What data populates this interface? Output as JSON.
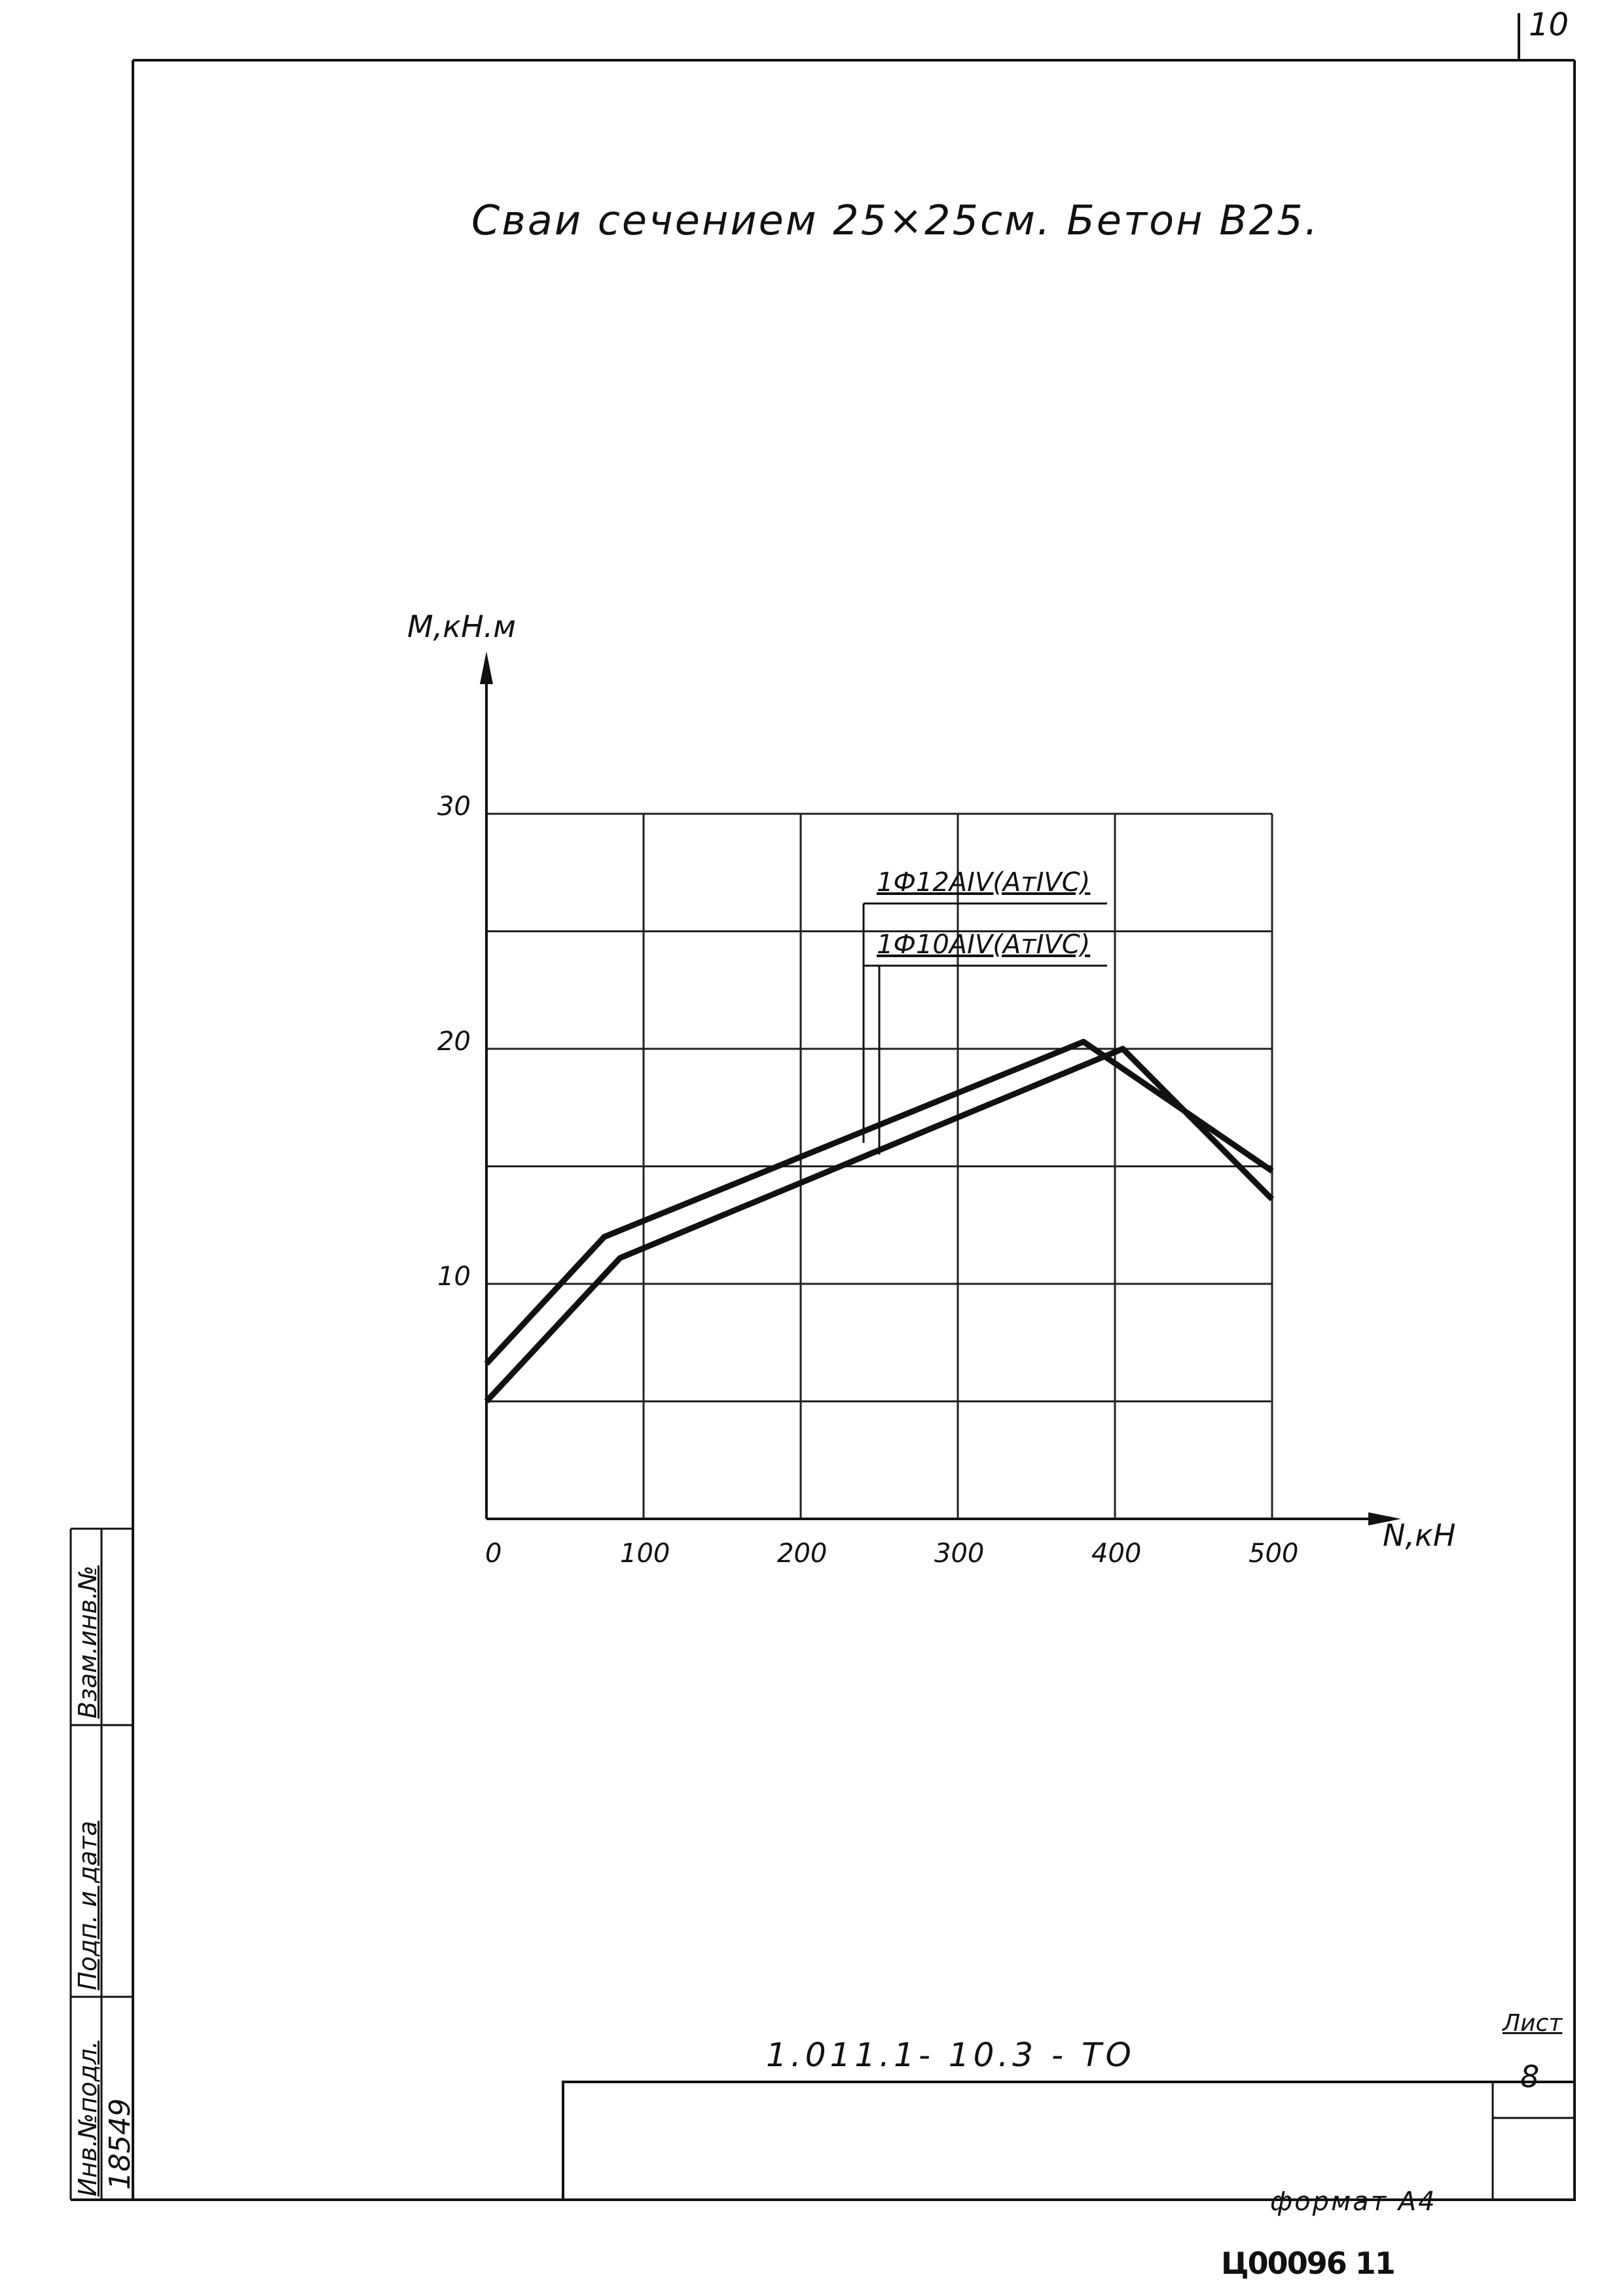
{
  "sheet": {
    "number_top": "10",
    "title": "Сваи сечением 25×25см. Бетон В25.",
    "code": "1.011.1- 10.3 -   ТО",
    "list_label": "Лист",
    "list_number": "8",
    "format_label": "формат А4",
    "stamp": "Ц00096   11"
  },
  "side_stamp": {
    "inv_label": "Инв.№подл.",
    "sign_label": "Подп. и дата",
    "replace_label": "Взам.инв.№",
    "inv_number": "18549"
  },
  "chart_data": {
    "type": "line",
    "xlabel": "N,кН",
    "ylabel": "M,кН.м",
    "xlim": [
      0,
      500
    ],
    "ylim": [
      0,
      30
    ],
    "x_ticks": [
      0,
      100,
      200,
      300,
      400,
      500
    ],
    "x_tick_labels": [
      "0",
      "100",
      "200",
      "300",
      "400",
      "500"
    ],
    "y_ticks": [
      10,
      20,
      30
    ],
    "y_tick_labels": [
      "10",
      "20",
      "30"
    ],
    "grid": true,
    "series": [
      {
        "name": "1Ф12АIV(АтIVС)",
        "points": [
          [
            0,
            6.6
          ],
          [
            75,
            12.0
          ],
          [
            380,
            20.3
          ],
          [
            500,
            14.8
          ]
        ]
      },
      {
        "name": "1Ф10АIV(АтIVC)",
        "points": [
          [
            0,
            5.0
          ],
          [
            85,
            11.1
          ],
          [
            405,
            20.0
          ],
          [
            500,
            13.6
          ]
        ]
      }
    ]
  }
}
